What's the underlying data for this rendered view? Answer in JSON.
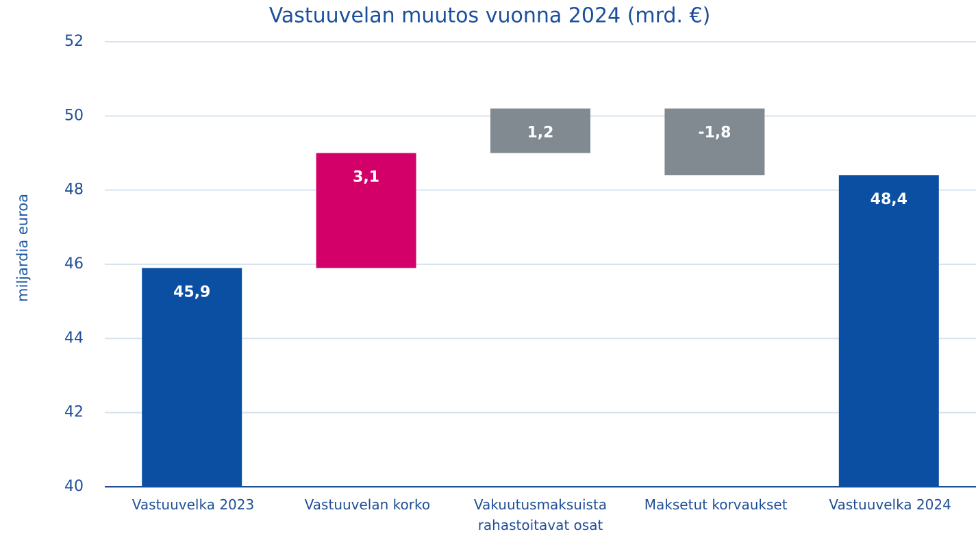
{
  "chart_data": {
    "type": "waterfall",
    "title": "Vastuuvelan muutos vuonna 2024 (mrd. €)",
    "y_label": "miljardia euroa",
    "categories": [
      "Vastuuvelka 2023",
      "Vastuuvelan korko",
      "Vakuutusmaksuista rahastoitavat osat",
      "Maksetut korvaukset",
      "Vastuuvelka 2024"
    ],
    "values": [
      45.9,
      3.1,
      1.2,
      -1.8,
      48.4
    ],
    "value_labels": [
      "45,9",
      "3,1",
      "1,2",
      "-1,8",
      "48,4"
    ],
    "measure": [
      "absolute",
      "relative",
      "relative",
      "relative",
      "total"
    ],
    "colors": [
      "#0b4fa3",
      "#d4006a",
      "#808a90",
      "#808a90",
      "#0b4fa3"
    ],
    "ylim": [
      40,
      52
    ],
    "yticks": [
      40,
      42,
      44,
      46,
      48,
      50,
      52
    ],
    "grid": true
  }
}
